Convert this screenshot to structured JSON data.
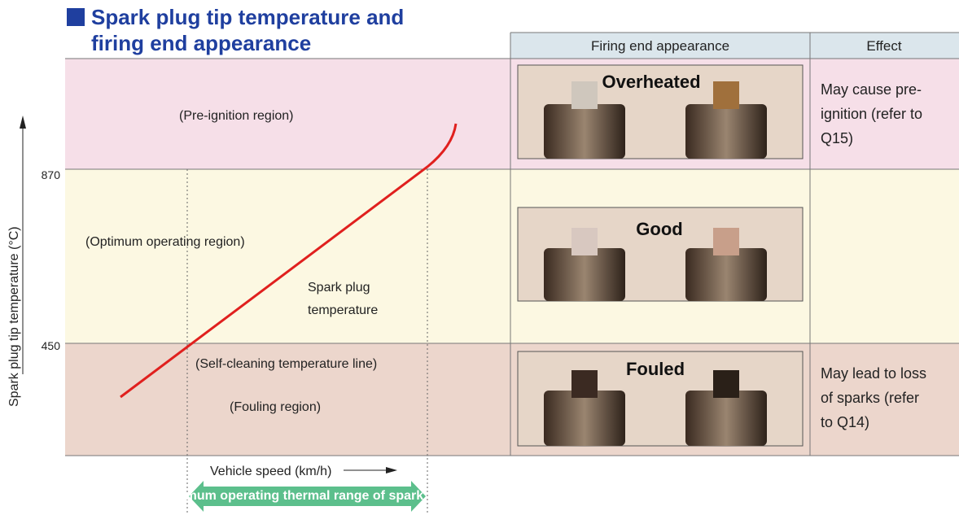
{
  "title": [
    "Spark plug tip temperature and",
    "firing end appearance"
  ],
  "table_header": {
    "appearance": "Firing end appearance",
    "effect": "Effect"
  },
  "y_axis": {
    "label": "Spark plug tip temperature (°C)",
    "ticks": [
      "870",
      "450"
    ]
  },
  "regions": {
    "pre_ignition": "(Pre-ignition region)",
    "optimum": "(Optimum operating region)",
    "self_cleaning": "(Self-cleaning temperature line)",
    "fouling": "(Fouling region)",
    "curve_label": [
      "Spark plug",
      "temperature"
    ]
  },
  "rows": [
    {
      "appearance": "Overheated",
      "effect": [
        "May cause pre-",
        "ignition (refer to",
        "Q15)"
      ]
    },
    {
      "appearance": "Good"
    },
    {
      "appearance": "Fouled",
      "effect": [
        "May lead to loss",
        "of sparks (refer",
        "to Q14)"
      ]
    }
  ],
  "x_axis": {
    "label": "Vehicle speed (km/h)",
    "range_label": "Optimum operating thermal range of spark plug"
  }
}
